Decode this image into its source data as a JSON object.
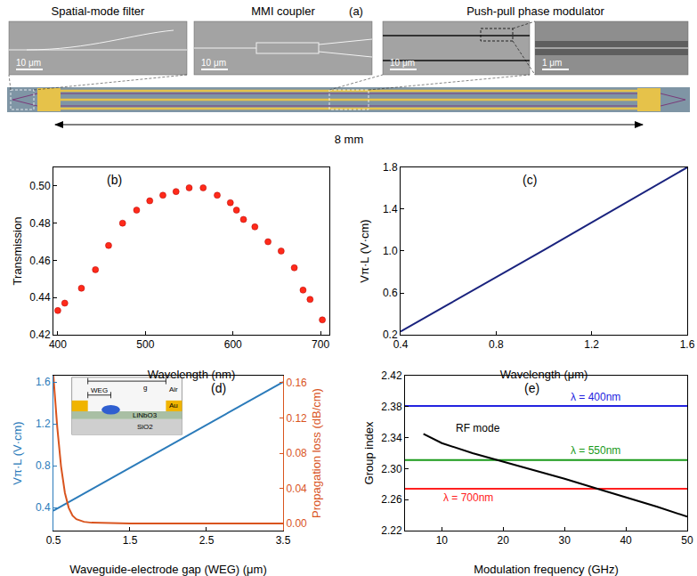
{
  "diagram": {
    "panel": "(a)",
    "micrographs": [
      {
        "title": "Spatial-mode filter",
        "scale_bar": "10 μm"
      },
      {
        "title": "MMI coupler",
        "scale_bar": "10 μm"
      },
      {
        "title": "Push-pull phase modulator",
        "scale_bar": "10 μm"
      },
      {
        "scale_bar": "1 μm"
      }
    ],
    "length": "8 mm"
  },
  "chart_data": [
    {
      "type": "scatter",
      "panel": "(b)",
      "xlabel": "Wavelength (nm)",
      "ylabel": "Transmission",
      "x": [
        400,
        408,
        427,
        443,
        458,
        474,
        490,
        505,
        520,
        535,
        550,
        566,
        582,
        597,
        604,
        612,
        625,
        640,
        655,
        670,
        680,
        688,
        702
      ],
      "values": [
        0.433,
        0.437,
        0.445,
        0.455,
        0.468,
        0.48,
        0.487,
        0.492,
        0.495,
        0.497,
        0.499,
        0.499,
        0.495,
        0.491,
        0.487,
        0.482,
        0.478,
        0.47,
        0.465,
        0.456,
        0.444,
        0.439,
        0.428
      ],
      "color": "#ff2a1a",
      "marker": "circle",
      "xlim": [
        395,
        710
      ],
      "ylim": [
        0.42,
        0.51
      ],
      "xticks": [
        400,
        500,
        600,
        700
      ],
      "yticks": [
        0.42,
        0.44,
        0.46,
        0.48,
        {
          "value": 0.5,
          "label": "0.50"
        }
      ],
      "grid": false
    },
    {
      "type": "line",
      "panel": "(c)",
      "xlabel": "Wavelength (μm)",
      "ylabel": "Vπ·L (V·cm)",
      "x": [
        0.4,
        0.58,
        0.6,
        1.0,
        1.6
      ],
      "values": [
        0.23,
        0.47,
        0.49,
        1.01,
        1.8
      ],
      "color": "#1a237e",
      "line_style": "solid",
      "xlim": [
        0.4,
        1.6
      ],
      "ylim": [
        0.2,
        1.8
      ],
      "xticks": [
        0.4,
        0.8,
        1.2,
        1.6
      ],
      "yticks": [
        0.2,
        0.6,
        {
          "value": 1,
          "label": "1.0"
        },
        1.4,
        1.8
      ],
      "grid": false
    },
    {
      "type": "line",
      "panel": "(d)",
      "xlabel": "Waveguide-electrode gap (WEG) (μm)",
      "ylabel": "Vπ·L (V·cm)",
      "y2label": "Propagation loss (dB/cm)",
      "series": [
        {
          "color": "#2b7bba",
          "line_style": "solid",
          "x": [
            0.5,
            1.5,
            2.5,
            3.5
          ],
          "values": [
            0.37,
            0.78,
            1.19,
            1.6
          ]
        },
        {
          "color": "#d9541e",
          "line_style": "solid",
          "axis": "y2",
          "x": [
            0.5,
            0.55,
            0.6,
            0.65,
            0.7,
            0.75,
            0.8,
            0.9,
            1.0,
            1.5,
            2.5,
            3.5
          ],
          "values": [
            0.168,
            0.11,
            0.065,
            0.035,
            0.018,
            0.009,
            0.005,
            0.002,
            0.001,
            0,
            0,
            0
          ]
        }
      ],
      "xlim": [
        0.5,
        3.5
      ],
      "ylim": [
        0.18,
        1.66
      ],
      "y2lim": [
        -0.008,
        0.168
      ],
      "xticks": [
        0.5,
        1.5,
        2.5,
        3.5
      ],
      "yticks": [
        0.4,
        0.8,
        1.2,
        1.6
      ],
      "y2ticks": [
        {
          "value": 0,
          "label": "0.00"
        },
        0.04,
        0.08,
        0.12,
        0.16
      ],
      "annotations": [
        "Air",
        "Au",
        "LiNbO3",
        "SiO2",
        "WEG",
        "g"
      ],
      "grid": false
    },
    {
      "type": "line",
      "panel": "(e)",
      "xlabel": "Modulation frequency (GHz)",
      "ylabel": "Group index",
      "series": [
        {
          "name": "λ = 400nm",
          "color": "#2323e0",
          "line_style": "solid",
          "x": [
            4,
            50
          ],
          "values": [
            2.381,
            2.381
          ]
        },
        {
          "name": "λ = 550nm",
          "color": "#1a9a1a",
          "line_style": "solid",
          "x": [
            4,
            50
          ],
          "values": [
            2.311,
            2.311
          ]
        },
        {
          "name": "λ = 700nm",
          "color": "#ff2020",
          "line_style": "solid",
          "x": [
            4,
            50
          ],
          "values": [
            2.274,
            2.274
          ]
        },
        {
          "name": "RF mode",
          "color": "#000000",
          "line_style": "solid",
          "x": [
            7,
            10,
            15,
            20,
            25,
            30,
            35,
            40,
            45,
            50
          ],
          "values": [
            2.345,
            2.333,
            2.32,
            2.309,
            2.298,
            2.287,
            2.275,
            2.263,
            2.251,
            2.238
          ]
        }
      ],
      "xlim": [
        4,
        50
      ],
      "ylim": [
        2.22,
        2.42
      ],
      "xticks": [
        10,
        20,
        30,
        40,
        50
      ],
      "yticks": [
        2.22,
        2.26,
        {
          "value": 2.3,
          "label": "2.30"
        },
        2.34,
        2.38,
        2.42
      ],
      "grid": false
    }
  ]
}
